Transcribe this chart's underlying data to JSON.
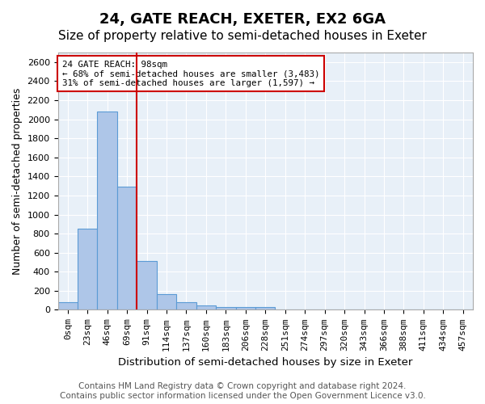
{
  "title": "24, GATE REACH, EXETER, EX2 6GA",
  "subtitle": "Size of property relative to semi-detached houses in Exeter",
  "xlabel": "Distribution of semi-detached houses by size in Exeter",
  "ylabel": "Number of semi-detached properties",
  "bar_labels": [
    "0sqm",
    "23sqm",
    "46sqm",
    "69sqm",
    "91sqm",
    "114sqm",
    "137sqm",
    "160sqm",
    "183sqm",
    "206sqm",
    "228sqm",
    "251sqm",
    "274sqm",
    "297sqm",
    "320sqm",
    "343sqm",
    "366sqm",
    "388sqm",
    "411sqm",
    "434sqm",
    "457sqm"
  ],
  "bar_values": [
    80,
    850,
    2080,
    1290,
    510,
    165,
    80,
    42,
    32,
    32,
    28,
    0,
    0,
    0,
    0,
    0,
    0,
    0,
    0,
    0,
    0
  ],
  "bar_color": "#aec6e8",
  "bar_edge_color": "#5b9bd5",
  "vline_x": 4,
  "vline_color": "#cc0000",
  "ylim": [
    0,
    2700
  ],
  "yticks": [
    0,
    200,
    400,
    600,
    800,
    1000,
    1200,
    1400,
    1600,
    1800,
    2000,
    2200,
    2400,
    2600
  ],
  "annotation_title": "24 GATE REACH: 98sqm",
  "annotation_line1": "← 68% of semi-detached houses are smaller (3,483)",
  "annotation_line2": "31% of semi-detached houses are larger (1,597) →",
  "annotation_box_edge": "#cc0000",
  "footer_line1": "Contains HM Land Registry data © Crown copyright and database right 2024.",
  "footer_line2": "Contains public sector information licensed under the Open Government Licence v3.0.",
  "background_color": "#e8f0f8",
  "grid_color": "#ffffff",
  "title_fontsize": 13,
  "subtitle_fontsize": 11,
  "axis_label_fontsize": 9,
  "tick_fontsize": 8,
  "footer_fontsize": 7.5
}
